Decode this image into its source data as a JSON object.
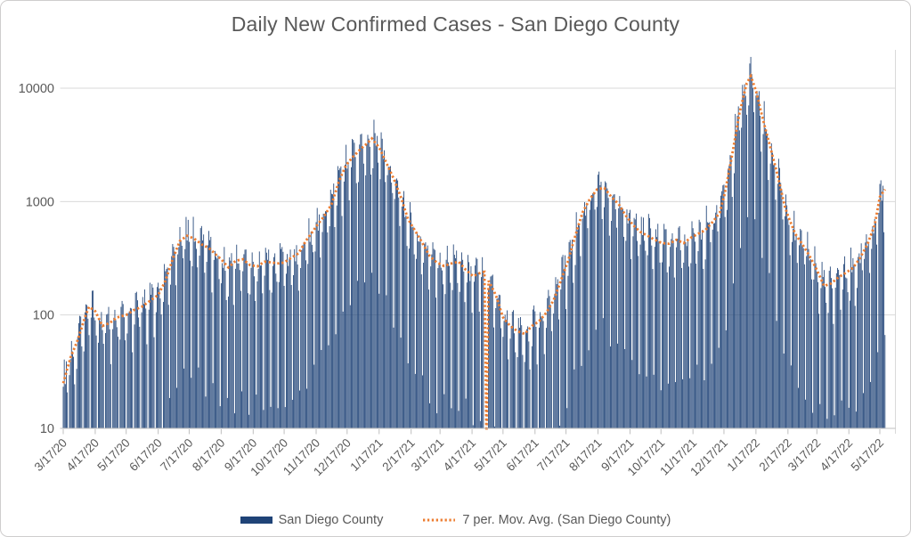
{
  "chart_data": {
    "type": "bar",
    "title": "Daily New Confirmed Cases - San Diego County",
    "xlabel": "",
    "ylabel": "",
    "y_axis": {
      "scale": "log",
      "tick_labels": [
        "10",
        "100",
        "1000",
        "10000"
      ],
      "min": 10,
      "max": 20000,
      "gridlines": true
    },
    "x_axis": {
      "start_date": "3/17/20",
      "end_date_approx": "5/22/22",
      "tick_labels": [
        "3/17/20",
        "4/17/20",
        "5/17/20",
        "6/17/20",
        "7/17/20",
        "8/17/20",
        "9/17/20",
        "10/17/20",
        "11/17/20",
        "12/17/20",
        "1/17/21",
        "2/17/21",
        "3/17/21",
        "4/17/21",
        "5/17/21",
        "6/17/21",
        "7/17/21",
        "8/17/21",
        "9/17/21",
        "10/17/21",
        "11/17/21",
        "12/17/21",
        "1/17/22",
        "2/17/22",
        "3/17/22",
        "4/17/22",
        "5/17/22"
      ],
      "label_rotation_deg": -45
    },
    "series": [
      {
        "name": "San Diego County",
        "type": "bar",
        "color": "#1F4377"
      },
      {
        "name": "7 per. Mov. Avg. (San Diego County)",
        "type": "dotted-line",
        "color": "#ED7D31"
      }
    ],
    "legend_position": "bottom",
    "moving_avg_points_day_value": [
      [
        0,
        25
      ],
      [
        7,
        42
      ],
      [
        14,
        60
      ],
      [
        21,
        95
      ],
      [
        25,
        118
      ],
      [
        31,
        108
      ],
      [
        38,
        80
      ],
      [
        45,
        85
      ],
      [
        52,
        95
      ],
      [
        61,
        100
      ],
      [
        68,
        110
      ],
      [
        76,
        118
      ],
      [
        85,
        135
      ],
      [
        92,
        150
      ],
      [
        99,
        200
      ],
      [
        106,
        310
      ],
      [
        113,
        450
      ],
      [
        120,
        500
      ],
      [
        127,
        470
      ],
      [
        134,
        420
      ],
      [
        141,
        390
      ],
      [
        148,
        340
      ],
      [
        153,
        310
      ],
      [
        160,
        262
      ],
      [
        167,
        300
      ],
      [
        174,
        310
      ],
      [
        181,
        275
      ],
      [
        188,
        268
      ],
      [
        195,
        295
      ],
      [
        202,
        290
      ],
      [
        209,
        285
      ],
      [
        214,
        290
      ],
      [
        221,
        320
      ],
      [
        228,
        350
      ],
      [
        235,
        450
      ],
      [
        242,
        550
      ],
      [
        246,
        620
      ],
      [
        253,
        750
      ],
      [
        260,
        950
      ],
      [
        267,
        1500
      ],
      [
        274,
        2100
      ],
      [
        281,
        2500
      ],
      [
        288,
        2900
      ],
      [
        295,
        3300
      ],
      [
        299,
        3600
      ],
      [
        306,
        3000
      ],
      [
        313,
        2200
      ],
      [
        320,
        1600
      ],
      [
        327,
        1100
      ],
      [
        334,
        700
      ],
      [
        341,
        550
      ],
      [
        348,
        430
      ],
      [
        355,
        330
      ],
      [
        362,
        290
      ],
      [
        369,
        270
      ],
      [
        376,
        285
      ],
      [
        383,
        295
      ],
      [
        390,
        250
      ],
      [
        397,
        220
      ],
      [
        404,
        235
      ],
      [
        408,
        240
      ],
      [
        410,
        8
      ],
      [
        412,
        200
      ],
      [
        419,
        150
      ],
      [
        426,
        95
      ],
      [
        433,
        80
      ],
      [
        440,
        72
      ],
      [
        447,
        68
      ],
      [
        454,
        80
      ],
      [
        461,
        88
      ],
      [
        468,
        105
      ],
      [
        475,
        135
      ],
      [
        482,
        200
      ],
      [
        489,
        300
      ],
      [
        496,
        500
      ],
      [
        503,
        800
      ],
      [
        510,
        1050
      ],
      [
        517,
        1280
      ],
      [
        524,
        1320
      ],
      [
        531,
        1100
      ],
      [
        538,
        950
      ],
      [
        545,
        750
      ],
      [
        552,
        620
      ],
      [
        559,
        540
      ],
      [
        566,
        500
      ],
      [
        573,
        460
      ],
      [
        580,
        430
      ],
      [
        587,
        425
      ],
      [
        594,
        460
      ],
      [
        601,
        430
      ],
      [
        608,
        480
      ],
      [
        615,
        520
      ],
      [
        622,
        560
      ],
      [
        629,
        660
      ],
      [
        636,
        800
      ],
      [
        641,
        1200
      ],
      [
        648,
        2600
      ],
      [
        655,
        6000
      ],
      [
        662,
        11000
      ],
      [
        666,
        12800
      ],
      [
        671,
        9500
      ],
      [
        678,
        5200
      ],
      [
        685,
        3000
      ],
      [
        692,
        1700
      ],
      [
        699,
        900
      ],
      [
        702,
        750
      ],
      [
        709,
        520
      ],
      [
        716,
        420
      ],
      [
        723,
        330
      ],
      [
        730,
        250
      ],
      [
        737,
        180
      ],
      [
        744,
        190
      ],
      [
        751,
        215
      ],
      [
        758,
        235
      ],
      [
        765,
        260
      ],
      [
        772,
        320
      ],
      [
        779,
        420
      ],
      [
        786,
        620
      ],
      [
        791,
        1100
      ],
      [
        796,
        1280
      ]
    ],
    "bar_generation": {
      "total_days": 797,
      "weekday_multipliers": [
        1.22,
        1.15,
        1.1,
        1.02,
        0.55,
        0.06,
        0.7
      ],
      "noise_log_amplitude": 0.55,
      "gap_days": [
        408,
        409,
        410,
        411
      ]
    },
    "colors": {
      "bar": "#1F4377",
      "moving_avg": "#ED7D31",
      "text": "#595959",
      "gridline": "#D9D9D9",
      "axis": "#BFBFBF"
    }
  }
}
